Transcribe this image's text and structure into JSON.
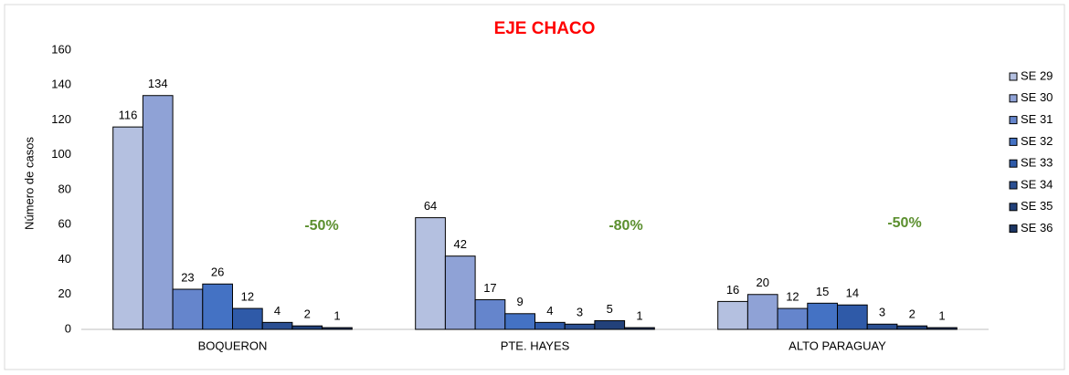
{
  "chart_data": {
    "type": "bar",
    "title": "EJE CHACO",
    "y_label": "Número de casos",
    "categories": [
      "BOQUERON",
      "PTE. HAYES",
      "ALTO PARAGUAY"
    ],
    "series": [
      {
        "name": "SE 29",
        "color": "#b4c0e0",
        "values": [
          116,
          64,
          16
        ]
      },
      {
        "name": "SE 30",
        "color": "#8fa2d6",
        "values": [
          134,
          42,
          20
        ]
      },
      {
        "name": "SE 31",
        "color": "#6585cc",
        "values": [
          23,
          17,
          12
        ]
      },
      {
        "name": "SE 32",
        "color": "#4472c4",
        "values": [
          26,
          9,
          15
        ]
      },
      {
        "name": "SE 33",
        "color": "#2f5aa8",
        "values": [
          12,
          4,
          14
        ]
      },
      {
        "name": "SE 34",
        "color": "#2b4f92",
        "values": [
          4,
          3,
          3
        ]
      },
      {
        "name": "SE 35",
        "color": "#22417a",
        "values": [
          2,
          5,
          2
        ]
      },
      {
        "name": "SE 36",
        "color": "#1c3563",
        "values": [
          1,
          1,
          1
        ]
      }
    ],
    "annotations": [
      "-50%",
      "-80%",
      "-50%"
    ],
    "ylim": [
      0,
      160
    ],
    "yticks": [
      0,
      20,
      40,
      60,
      80,
      100,
      120,
      140,
      160
    ],
    "grid": false,
    "legend": "right"
  }
}
